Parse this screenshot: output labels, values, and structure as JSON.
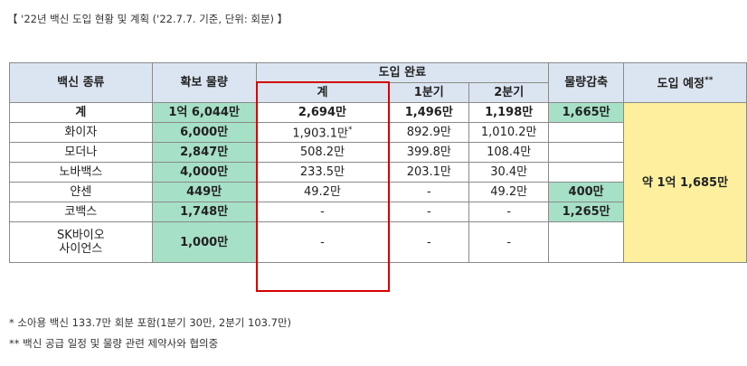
{
  "caption": "【 '22년 백신 도입 현황 및 계획 ('22.7.7. 기준, 단위: 회분) 】",
  "headers": {
    "vaccine_type": "백신 종류",
    "secured": "확보 물량",
    "introduced_group": "도입 완료",
    "total": "계",
    "q1": "1분기",
    "q2": "2분기",
    "reduction": "물량감축",
    "planned": "도입 예정",
    "planned_mark": "**"
  },
  "rows": [
    {
      "name": "계",
      "secured": "1억 6,044만",
      "total": "2,694만",
      "total_mark": "",
      "q1": "1,496만",
      "q2": "1,198만",
      "reduction": "1,665만"
    },
    {
      "name": "화이자",
      "secured": "6,000만",
      "total": "1,903.1만",
      "total_mark": "*",
      "q1": "892.9만",
      "q2": "1,010.2만",
      "reduction": ""
    },
    {
      "name": "모더나",
      "secured": "2,847만",
      "total": "508.2만",
      "total_mark": "",
      "q1": "399.8만",
      "q2": "108.4만",
      "reduction": ""
    },
    {
      "name": "노바백스",
      "secured": "4,000만",
      "total": "233.5만",
      "total_mark": "",
      "q1": "203.1만",
      "q2": "30.4만",
      "reduction": ""
    },
    {
      "name": "얀센",
      "secured": "449만",
      "total": "49.2만",
      "total_mark": "",
      "q1": "-",
      "q2": "49.2만",
      "reduction": "400만"
    },
    {
      "name": "코백스",
      "secured": "1,748만",
      "total": "-",
      "total_mark": "",
      "q1": "-",
      "q2": "-",
      "reduction": "1,265만"
    },
    {
      "name_line1": "SK바이오",
      "name_line2": "사이언스",
      "secured": "1,000만",
      "total": "-",
      "total_mark": "",
      "q1": "-",
      "q2": "-",
      "reduction": ""
    }
  ],
  "planned_value": "약 1억  1,685만",
  "notes": [
    "* 소아용 백신 133.7만 회분 포함(1분기 30만, 2분기 103.7만)",
    "** 백신 공급 일정 및 물량 관련 제약사와 협의중"
  ]
}
